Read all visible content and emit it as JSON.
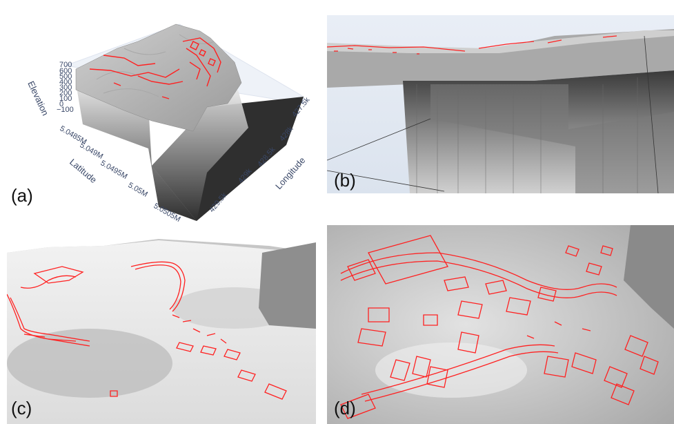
{
  "panels": {
    "a": {
      "label": "(a)"
    },
    "b": {
      "label": "(b)"
    },
    "c": {
      "label": "(c)"
    },
    "d": {
      "label": "(d)"
    }
  },
  "plot3d": {
    "z_title": "Elevation",
    "z_ticks": [
      "700",
      "600",
      "500",
      "400",
      "300",
      "200",
      "100",
      "0",
      "−100"
    ],
    "y_title": "Latitude",
    "y_ticks": [
      "5.0485M",
      "5.049M",
      "5.0495M",
      "5.05M",
      "5.0505M"
    ],
    "x_title": "Longitude",
    "x_ticks": [
      "427.5k",
      "428k",
      "428.5k",
      "429k",
      "429.5k"
    ]
  },
  "colors": {
    "overlay": "#ff2020",
    "terrain_light": "#d6d6d6",
    "terrain_dark": "#333333",
    "axis_text": "#3a4868"
  }
}
